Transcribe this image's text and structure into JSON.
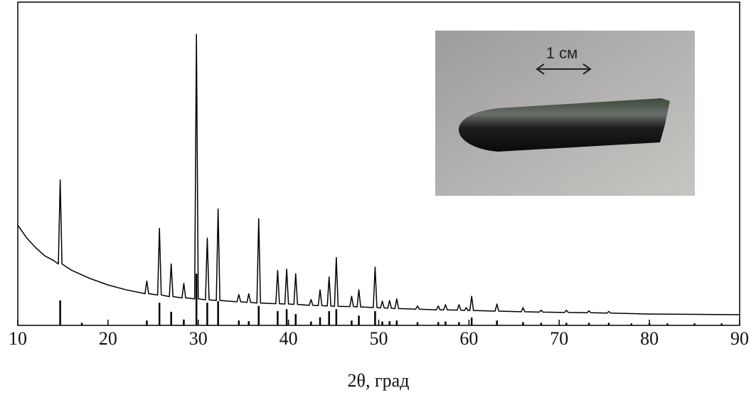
{
  "chart_data": {
    "type": "line",
    "xlabel": "2θ, град",
    "xlim": [
      10,
      90
    ],
    "xticks": [
      10,
      20,
      30,
      40,
      50,
      60,
      70,
      80,
      90
    ],
    "ylim": [
      0,
      100
    ],
    "series": [
      {
        "kind": "line",
        "color": "#000000",
        "x": [
          10,
          11,
          12,
          13,
          14,
          14.5,
          14.7,
          14.9,
          16,
          18,
          20,
          22,
          24.1,
          24.3,
          24.5,
          25.5,
          25.7,
          25.9,
          26.8,
          27.0,
          27.2,
          28.2,
          28.4,
          28.6,
          29.6,
          29.8,
          30.0,
          30.8,
          31.0,
          31.2,
          32.0,
          32.2,
          32.4,
          34.3,
          34.5,
          34.7,
          35.4,
          35.6,
          35.8,
          36.5,
          36.7,
          36.9,
          38.6,
          38.8,
          39.0,
          39.6,
          39.8,
          40.0,
          40.6,
          40.8,
          41.0,
          42.3,
          42.5,
          42.7,
          43.3,
          43.5,
          43.7,
          44.3,
          44.5,
          44.7,
          45.1,
          45.3,
          45.5,
          46.8,
          47.0,
          47.2,
          47.6,
          47.8,
          48.0,
          49.4,
          49.6,
          49.8,
          50.2,
          50.4,
          50.6,
          51.0,
          51.2,
          51.4,
          51.8,
          52.0,
          52.2,
          54.1,
          54.3,
          54.5,
          56.4,
          56.6,
          56.8,
          57.2,
          57.4,
          57.6,
          58.7,
          58.9,
          59.1,
          59.5,
          59.7,
          59.9,
          60.1,
          60.3,
          60.5,
          62.9,
          63.1,
          63.3,
          65.8,
          66.0,
          66.2,
          67.8,
          68.0,
          68.2,
          70.6,
          70.8,
          71.0,
          73.1,
          73.3,
          73.5,
          75.3,
          75.5,
          75.7,
          80,
          85,
          90
        ],
        "values": [
          31,
          27,
          24,
          21.5,
          20,
          19,
          45,
          19,
          17,
          14.5,
          12.5,
          11,
          9.8,
          13.7,
          9.8,
          9.4,
          30,
          9.4,
          8.9,
          19,
          8.9,
          8.5,
          13,
          8.5,
          8.2,
          90,
          8.2,
          7.9,
          27,
          7.9,
          7.7,
          36,
          7.7,
          7.3,
          9.5,
          7.3,
          7.1,
          9.8,
          7.1,
          6.9,
          33,
          6.9,
          6.7,
          17,
          6.7,
          6.6,
          17.4,
          6.6,
          6.5,
          16,
          6.5,
          6.2,
          8,
          6.2,
          6.1,
          11,
          6.1,
          6,
          15,
          6,
          5.9,
          21,
          5.9,
          5.8,
          9,
          5.8,
          5.7,
          11,
          5.7,
          5.5,
          18,
          5.5,
          5.4,
          7.5,
          5.4,
          5.3,
          7.7,
          5.3,
          5.2,
          8.2,
          5.2,
          5,
          6,
          5,
          4.8,
          6,
          4.8,
          4.8,
          6.4,
          4.8,
          4.7,
          6.4,
          4.7,
          4.6,
          5.5,
          4.6,
          4.6,
          9,
          4.6,
          4.4,
          6.6,
          4.4,
          4.2,
          5.5,
          4.2,
          4.1,
          4.7,
          4.1,
          4.0,
          4.7,
          4.0,
          3.9,
          4.5,
          3.9,
          3.8,
          4.3,
          3.8,
          3.5,
          3.4,
          3.3
        ]
      },
      {
        "kind": "stick",
        "color": "#000000",
        "x": [
          14.7,
          17.1,
          24.3,
          25.7,
          27.0,
          28.4,
          29.8,
          31.0,
          32.2,
          34.5,
          35.6,
          36.7,
          38.8,
          39.8,
          40.8,
          42.5,
          43.5,
          44.5,
          45.3,
          47.0,
          47.8,
          49.6,
          50.4,
          51.2,
          52.0,
          54.3,
          56.6,
          57.4,
          58.9,
          60.3,
          63.1,
          66.0,
          68.0,
          70.8,
          73.3,
          75.5,
          78,
          80,
          82,
          85,
          88
        ],
        "values": [
          7.7,
          0.8,
          1.5,
          7,
          4.2,
          1.8,
          16,
          7,
          7.5,
          1.5,
          1.3,
          6,
          4.4,
          5,
          3.5,
          1.2,
          2.5,
          4.4,
          5,
          1.5,
          3,
          4.4,
          1.2,
          1.3,
          1.5,
          1,
          1,
          1.2,
          1,
          2.4,
          1.5,
          1,
          0.8,
          0.8,
          0.8,
          0.8,
          0.6,
          0.6,
          0.6,
          0.6,
          0.6
        ]
      }
    ]
  },
  "inset": {
    "label": "1 см"
  }
}
